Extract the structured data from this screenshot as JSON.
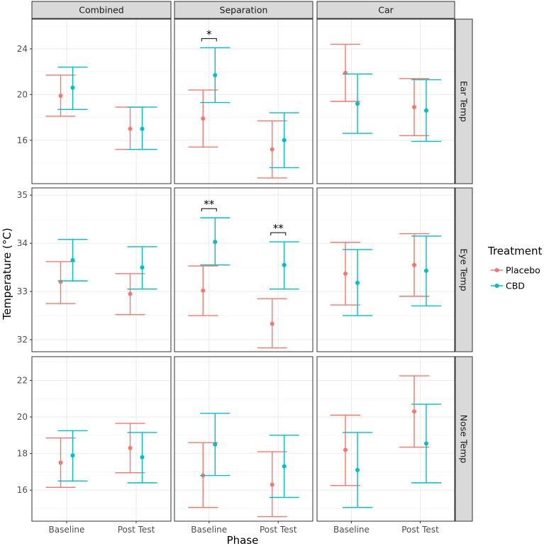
{
  "chart_data": {
    "type": "errorbar",
    "xlabel": "Phase",
    "ylabel": "Temperature (°C)",
    "categories": [
      "Baseline",
      "Post Test"
    ],
    "columns": [
      "Combined",
      "Separation",
      "Car"
    ],
    "rows": [
      {
        "label": "Ear Temp",
        "ylim": [
          12.2,
          26.6
        ],
        "ticks": [
          16,
          20,
          24
        ]
      },
      {
        "label": "Eye Temp",
        "ylim": [
          31.75,
          35.15
        ],
        "ticks": [
          32,
          33,
          34,
          35
        ]
      },
      {
        "label": "Nose Temp",
        "ylim": [
          14.3,
          23.3
        ],
        "ticks": [
          16,
          18,
          20,
          22
        ]
      }
    ],
    "legend": {
      "title": "Treatment",
      "position": "right",
      "entries": [
        {
          "name": "Placebo",
          "color": "#F8766D"
        },
        {
          "name": "CBD",
          "color": "#00BFC4"
        }
      ]
    },
    "grid": true,
    "panels": [
      {
        "row": 0,
        "col": 0,
        "series": [
          {
            "name": "Placebo",
            "points": [
              {
                "x": "Baseline",
                "y": 19.9,
                "ymin": 18.1,
                "ymax": 21.7
              },
              {
                "x": "Post Test",
                "y": 17.0,
                "ymin": 15.2,
                "ymax": 18.9
              }
            ]
          },
          {
            "name": "CBD",
            "points": [
              {
                "x": "Baseline",
                "y": 20.6,
                "ymin": 18.7,
                "ymax": 22.4
              },
              {
                "x": "Post Test",
                "y": 17.0,
                "ymin": 15.2,
                "ymax": 18.9
              }
            ]
          }
        ]
      },
      {
        "row": 0,
        "col": 1,
        "series": [
          {
            "name": "Placebo",
            "points": [
              {
                "x": "Baseline",
                "y": 17.9,
                "ymin": 15.4,
                "ymax": 20.4
              },
              {
                "x": "Post Test",
                "y": 15.2,
                "ymin": 12.7,
                "ymax": 17.7
              }
            ]
          },
          {
            "name": "CBD",
            "points": [
              {
                "x": "Baseline",
                "y": 21.7,
                "ymin": 19.3,
                "ymax": 24.1
              },
              {
                "x": "Post Test",
                "y": 16.0,
                "ymin": 13.6,
                "ymax": 18.4
              }
            ]
          }
        ],
        "annotations": [
          {
            "x": "Baseline",
            "y": 24.9,
            "label": "*"
          }
        ]
      },
      {
        "row": 0,
        "col": 2,
        "series": [
          {
            "name": "Placebo",
            "points": [
              {
                "x": "Baseline",
                "y": 21.9,
                "ymin": 19.4,
                "ymax": 24.4
              },
              {
                "x": "Post Test",
                "y": 18.9,
                "ymin": 16.4,
                "ymax": 21.4
              }
            ]
          },
          {
            "name": "CBD",
            "points": [
              {
                "x": "Baseline",
                "y": 19.2,
                "ymin": 16.6,
                "ymax": 21.8
              },
              {
                "x": "Post Test",
                "y": 18.6,
                "ymin": 15.9,
                "ymax": 21.3
              }
            ]
          }
        ]
      },
      {
        "row": 1,
        "col": 0,
        "series": [
          {
            "name": "Placebo",
            "points": [
              {
                "x": "Baseline",
                "y": 33.2,
                "ymin": 32.75,
                "ymax": 33.62
              },
              {
                "x": "Post Test",
                "y": 32.95,
                "ymin": 32.52,
                "ymax": 33.37
              }
            ]
          },
          {
            "name": "CBD",
            "points": [
              {
                "x": "Baseline",
                "y": 33.65,
                "ymin": 33.22,
                "ymax": 34.08
              },
              {
                "x": "Post Test",
                "y": 33.5,
                "ymin": 33.05,
                "ymax": 33.93
              }
            ]
          }
        ]
      },
      {
        "row": 1,
        "col": 1,
        "series": [
          {
            "name": "Placebo",
            "points": [
              {
                "x": "Baseline",
                "y": 33.02,
                "ymin": 32.5,
                "ymax": 33.53
              },
              {
                "x": "Post Test",
                "y": 32.33,
                "ymin": 31.83,
                "ymax": 32.85
              }
            ]
          },
          {
            "name": "CBD",
            "points": [
              {
                "x": "Baseline",
                "y": 34.03,
                "ymin": 33.55,
                "ymax": 34.53
              },
              {
                "x": "Post Test",
                "y": 33.55,
                "ymin": 33.05,
                "ymax": 34.03
              }
            ]
          }
        ],
        "annotations": [
          {
            "x": "Baseline",
            "y": 34.72,
            "label": "**"
          },
          {
            "x": "Post Test",
            "y": 34.22,
            "label": "**"
          }
        ]
      },
      {
        "row": 1,
        "col": 2,
        "series": [
          {
            "name": "Placebo",
            "points": [
              {
                "x": "Baseline",
                "y": 33.37,
                "ymin": 32.72,
                "ymax": 34.02
              },
              {
                "x": "Post Test",
                "y": 33.55,
                "ymin": 32.9,
                "ymax": 34.2
              }
            ]
          },
          {
            "name": "CBD",
            "points": [
              {
                "x": "Baseline",
                "y": 33.18,
                "ymin": 32.5,
                "ymax": 33.87
              },
              {
                "x": "Post Test",
                "y": 33.43,
                "ymin": 32.7,
                "ymax": 34.15
              }
            ]
          }
        ]
      },
      {
        "row": 2,
        "col": 0,
        "series": [
          {
            "name": "Placebo",
            "points": [
              {
                "x": "Baseline",
                "y": 17.5,
                "ymin": 16.15,
                "ymax": 18.85
              },
              {
                "x": "Post Test",
                "y": 18.3,
                "ymin": 16.95,
                "ymax": 19.65
              }
            ]
          },
          {
            "name": "CBD",
            "points": [
              {
                "x": "Baseline",
                "y": 17.9,
                "ymin": 16.5,
                "ymax": 19.25
              },
              {
                "x": "Post Test",
                "y": 17.8,
                "ymin": 16.4,
                "ymax": 19.15
              }
            ]
          }
        ]
      },
      {
        "row": 2,
        "col": 1,
        "series": [
          {
            "name": "Placebo",
            "points": [
              {
                "x": "Baseline",
                "y": 16.8,
                "ymin": 15.05,
                "ymax": 18.6
              },
              {
                "x": "Post Test",
                "y": 16.3,
                "ymin": 14.55,
                "ymax": 18.1
              }
            ]
          },
          {
            "name": "CBD",
            "points": [
              {
                "x": "Baseline",
                "y": 18.5,
                "ymin": 16.8,
                "ymax": 20.2
              },
              {
                "x": "Post Test",
                "y": 17.3,
                "ymin": 15.6,
                "ymax": 19.0
              }
            ]
          }
        ]
      },
      {
        "row": 2,
        "col": 2,
        "series": [
          {
            "name": "Placebo",
            "points": [
              {
                "x": "Baseline",
                "y": 18.2,
                "ymin": 16.25,
                "ymax": 20.1
              },
              {
                "x": "Post Test",
                "y": 20.3,
                "ymin": 18.35,
                "ymax": 22.25
              }
            ]
          },
          {
            "name": "CBD",
            "points": [
              {
                "x": "Baseline",
                "y": 17.1,
                "ymin": 15.05,
                "ymax": 19.15
              },
              {
                "x": "Post Test",
                "y": 18.55,
                "ymin": 16.4,
                "ymax": 20.7
              }
            ]
          }
        ]
      }
    ]
  }
}
